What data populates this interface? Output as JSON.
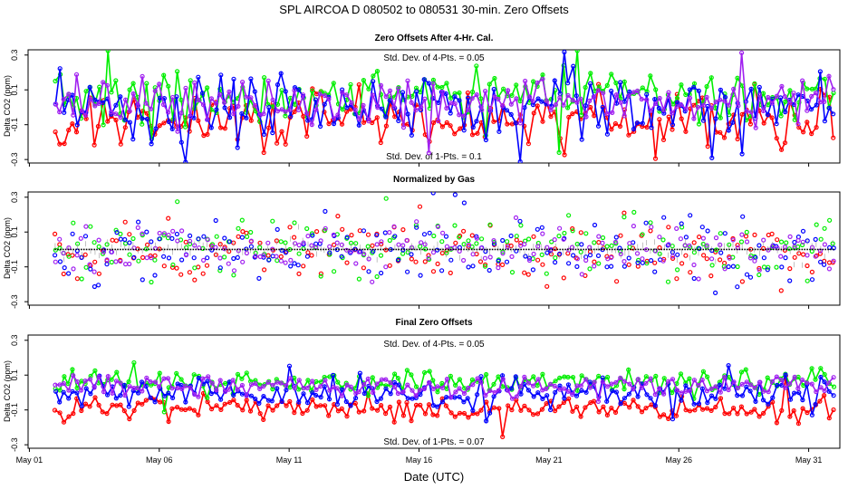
{
  "figure_title": "SPL   AIRCOA D   080502 to 080531   30-min. Zero Offsets",
  "x_axis_label": "Date (UTC)",
  "colors": {
    "red": "#ff0000",
    "green": "#00ee00",
    "blue": "#0000ff",
    "purple": "#a020f0",
    "gray": "#999999",
    "black": "#000000"
  },
  "x_ticks": [
    "May 01",
    "May 06",
    "May 11",
    "May 16",
    "May 21",
    "May 26",
    "May 31"
  ],
  "chart_data": [
    {
      "type": "line",
      "title": "Zero Offsets After 4-Hr. Cal.",
      "ylabel": "Delta CO2 (ppm)",
      "ylim": [
        -0.32,
        0.33
      ],
      "yticks": [
        "-0.3",
        "-0.1",
        "0.1",
        "0.3"
      ],
      "xlim_days": [
        0.95,
        32.2
      ],
      "data_start_day": 2.0,
      "data_end_day": 31.95,
      "annotations": [
        "Std. Dev. of 4-Pts. = 0.05",
        "Std. Dev. of 1-Pts. = 0.1"
      ],
      "series": [
        {
          "name": "red",
          "color": "red",
          "mean": -0.08,
          "sd": 0.08
        },
        {
          "name": "green",
          "color": "green",
          "mean": 0.07,
          "sd": 0.08
        },
        {
          "name": "blue",
          "color": "blue",
          "mean": 0.0,
          "sd": 0.09
        },
        {
          "name": "purple",
          "color": "purple",
          "mean": 0.03,
          "sd": 0.06
        }
      ]
    },
    {
      "type": "scatter",
      "title": "Normalized by Gas",
      "ylabel": "Delta CO2 (ppm)",
      "ylim": [
        -0.32,
        0.33
      ],
      "yticks": [
        "-0.3",
        "-0.1",
        "0.1",
        "0.3"
      ],
      "xlim_days": [
        0.95,
        32.2
      ],
      "data_start_day": 2.0,
      "data_end_day": 31.95,
      "annotations": [],
      "series": [
        {
          "name": "red",
          "color": "red",
          "mean": -0.02,
          "sd": 0.08
        },
        {
          "name": "green",
          "color": "green",
          "mean": 0.02,
          "sd": 0.08
        },
        {
          "name": "blue",
          "color": "blue",
          "mean": 0.0,
          "sd": 0.09
        },
        {
          "name": "purple",
          "color": "purple",
          "mean": 0.0,
          "sd": 0.06
        },
        {
          "name": "mean",
          "color": "gray",
          "mean": 0.0,
          "sd": 0.025
        }
      ]
    },
    {
      "type": "line",
      "title": "Final Zero Offsets",
      "ylabel": "Delta CO2 (ppm)",
      "ylim": [
        -0.32,
        0.33
      ],
      "yticks": [
        "-0.3",
        "-0.1",
        "0.1",
        "0.3"
      ],
      "xlim_days": [
        0.95,
        32.2
      ],
      "data_start_day": 2.0,
      "data_end_day": 31.95,
      "annotations": [
        "Std. Dev. of 4-Pts. = 0.05",
        "Std. Dev. of 1-Pts. = 0.07"
      ],
      "series": [
        {
          "name": "red",
          "color": "red",
          "mean": -0.09,
          "sd": 0.035
        },
        {
          "name": "green",
          "color": "green",
          "mean": 0.06,
          "sd": 0.035
        },
        {
          "name": "blue",
          "color": "blue",
          "mean": 0.0,
          "sd": 0.045
        },
        {
          "name": "purple",
          "color": "purple",
          "mean": 0.04,
          "sd": 0.03
        }
      ]
    }
  ]
}
